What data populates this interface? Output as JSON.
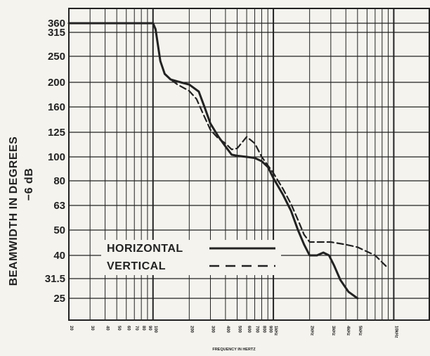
{
  "chart_data": {
    "type": "line",
    "xscale": "log",
    "xlim": [
      20,
      20000
    ],
    "xlabel": "FREQUENCY IN HERTZ",
    "ylabel_line1": "BEAMWIDTH IN DEGREES",
    "ylabel_line2": "−6 dB",
    "x_tick_labels": [
      {
        "x": 20,
        "label": "20"
      },
      {
        "x": 30,
        "label": "30"
      },
      {
        "x": 40,
        "label": "40"
      },
      {
        "x": 50,
        "label": "50"
      },
      {
        "x": 60,
        "label": "60"
      },
      {
        "x": 70,
        "label": "70"
      },
      {
        "x": 80,
        "label": "80"
      },
      {
        "x": 90,
        "label": "90"
      },
      {
        "x": 100,
        "label": "100"
      },
      {
        "x": 200,
        "label": "200"
      },
      {
        "x": 300,
        "label": "300"
      },
      {
        "x": 400,
        "label": "400"
      },
      {
        "x": 500,
        "label": "500"
      },
      {
        "x": 600,
        "label": "600"
      },
      {
        "x": 700,
        "label": "700"
      },
      {
        "x": 800,
        "label": "800"
      },
      {
        "x": 900,
        "label": "900"
      },
      {
        "x": 1000,
        "label": "1kHz"
      },
      {
        "x": 2000,
        "label": "2kHz"
      },
      {
        "x": 3000,
        "label": "3kHz"
      },
      {
        "x": 4000,
        "label": "4kHz"
      },
      {
        "x": 5000,
        "label": "5kHz"
      },
      {
        "x": 10000,
        "label": "10kHz"
      },
      {
        "x": 20000,
        "label": "20kHz"
      }
    ],
    "y_ticks": [
      "360",
      "315",
      "250",
      "200",
      "160",
      "125",
      "100",
      "80",
      "63",
      "50",
      "40",
      "31.5",
      "25"
    ],
    "series": [
      {
        "name": "HORIZONTAL",
        "style": "solid",
        "points": [
          [
            20,
            360
          ],
          [
            100,
            360
          ],
          [
            105,
            330
          ],
          [
            115,
            240
          ],
          [
            125,
            215
          ],
          [
            140,
            205
          ],
          [
            170,
            200
          ],
          [
            200,
            196
          ],
          [
            240,
            184
          ],
          [
            270,
            158
          ],
          [
            300,
            136
          ],
          [
            350,
            120
          ],
          [
            400,
            110
          ],
          [
            450,
            102
          ],
          [
            500,
            101
          ],
          [
            600,
            100
          ],
          [
            700,
            99
          ],
          [
            800,
            96
          ],
          [
            900,
            91
          ],
          [
            1000,
            82
          ],
          [
            1200,
            70
          ],
          [
            1400,
            60
          ],
          [
            1600,
            50
          ],
          [
            1800,
            44
          ],
          [
            2000,
            40
          ],
          [
            2300,
            40
          ],
          [
            2600,
            41
          ],
          [
            2900,
            40
          ],
          [
            3200,
            36
          ],
          [
            3600,
            31
          ],
          [
            4200,
            27
          ],
          [
            5000,
            25
          ]
        ]
      },
      {
        "name": "VERTICAL",
        "style": "dashed",
        "points": [
          [
            125,
            215
          ],
          [
            140,
            205
          ],
          [
            160,
            196
          ],
          [
            200,
            185
          ],
          [
            230,
            172
          ],
          [
            260,
            150
          ],
          [
            300,
            128
          ],
          [
            350,
            118
          ],
          [
            400,
            113
          ],
          [
            450,
            107
          ],
          [
            500,
            108
          ],
          [
            550,
            114
          ],
          [
            600,
            120
          ],
          [
            700,
            113
          ],
          [
            800,
            100
          ],
          [
            1000,
            86
          ],
          [
            1200,
            74
          ],
          [
            1400,
            64
          ],
          [
            1600,
            55
          ],
          [
            1800,
            48
          ],
          [
            2000,
            45
          ],
          [
            3000,
            45
          ],
          [
            4000,
            44
          ],
          [
            5000,
            43
          ],
          [
            7000,
            40
          ],
          [
            9000,
            35
          ]
        ]
      }
    ]
  },
  "legend": {
    "horizontal_label": "HORIZONTAL",
    "vertical_label": "VERTICAL"
  }
}
